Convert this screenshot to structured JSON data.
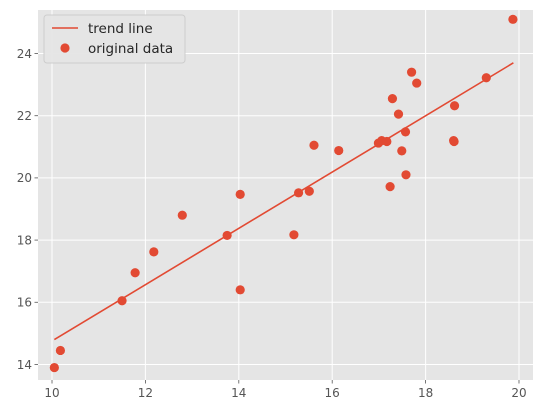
{
  "chart_data": {
    "type": "scatter",
    "title": "",
    "xlabel": "",
    "ylabel": "",
    "xlim": [
      9.7,
      20.3
    ],
    "ylim": [
      13.5,
      25.4
    ],
    "xticks": [
      10,
      12,
      14,
      16,
      18,
      20
    ],
    "yticks": [
      14,
      16,
      18,
      20,
      22,
      24
    ],
    "grid": true,
    "legend_position": "upper-left",
    "series": [
      {
        "name": "trend line",
        "kind": "line",
        "color": "#E24A33",
        "x": [
          10.05,
          19.88
        ],
        "y": [
          14.8,
          23.7
        ]
      },
      {
        "name": "original data",
        "kind": "scatter",
        "color": "#E24A33",
        "x": [
          10.05,
          10.18,
          11.5,
          11.78,
          12.18,
          12.79,
          13.75,
          14.03,
          14.03,
          15.18,
          15.28,
          15.51,
          15.61,
          16.14,
          16.99,
          17.06,
          17.17,
          17.24,
          17.29,
          17.42,
          17.49,
          17.57,
          17.58,
          17.7,
          17.81,
          18.6,
          18.61,
          18.62,
          19.3,
          19.87
        ],
        "y": [
          13.9,
          14.45,
          16.05,
          16.95,
          17.62,
          18.8,
          18.15,
          19.47,
          16.4,
          18.17,
          19.52,
          19.57,
          21.05,
          20.88,
          21.12,
          21.2,
          21.17,
          19.72,
          22.55,
          22.05,
          20.87,
          21.48,
          20.1,
          23.4,
          23.05,
          21.2,
          21.17,
          22.32,
          23.22,
          25.1
        ]
      }
    ]
  }
}
